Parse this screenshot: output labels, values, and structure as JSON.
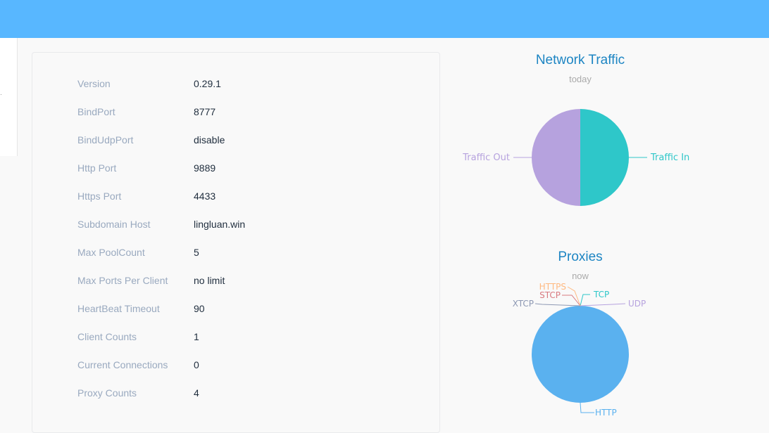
{
  "header": {
    "color": "#58b7ff"
  },
  "sidebar": {
    "marker_text": "·"
  },
  "server_info": {
    "rows": [
      {
        "label": "Version",
        "value": "0.29.1"
      },
      {
        "label": "BindPort",
        "value": "8777"
      },
      {
        "label": "BindUdpPort",
        "value": "disable"
      },
      {
        "label": "Http Port",
        "value": "9889"
      },
      {
        "label": "Https Port",
        "value": "4433"
      },
      {
        "label": "Subdomain Host",
        "value": "lingluan.win"
      },
      {
        "label": "Max PoolCount",
        "value": "5"
      },
      {
        "label": "Max Ports Per Client",
        "value": "no limit"
      },
      {
        "label": "HeartBeat Timeout",
        "value": "90"
      },
      {
        "label": "Client Counts",
        "value": "1"
      },
      {
        "label": "Current Connections",
        "value": "0"
      },
      {
        "label": "Proxy Counts",
        "value": "4"
      }
    ]
  },
  "chart_data": [
    {
      "type": "pie",
      "title": "Network Traffic",
      "subtitle": "today",
      "slices": [
        {
          "name": "Traffic In",
          "value": 50,
          "color": "#2ec7c9"
        },
        {
          "name": "Traffic Out",
          "value": 50,
          "color": "#b6a2de"
        }
      ]
    },
    {
      "type": "pie",
      "title": "Proxies",
      "subtitle": "now",
      "slices": [
        {
          "name": "HTTP",
          "value": 4,
          "color": "#5ab1ef"
        },
        {
          "name": "TCP",
          "value": 0,
          "color": "#2ec7c9"
        },
        {
          "name": "UDP",
          "value": 0,
          "color": "#b6a2de"
        },
        {
          "name": "XTCP",
          "value": 0,
          "color": "#8d98b3"
        },
        {
          "name": "STCP",
          "value": 0,
          "color": "#d87a80"
        },
        {
          "name": "HTTPS",
          "value": 0,
          "color": "#ffb980"
        }
      ]
    }
  ]
}
